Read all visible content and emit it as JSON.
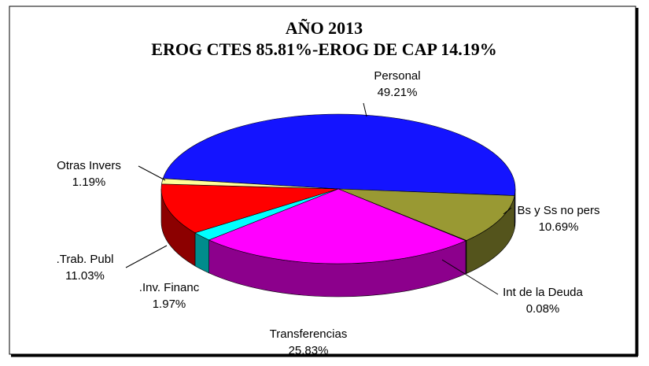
{
  "chart_data": {
    "type": "pie3d",
    "title": "AÑO 2013",
    "subtitle": "EROG CTES 85.81%-EROG DE CAP 14.19%",
    "categories": [
      "Personal",
      "Bs y Ss no pers",
      "Int de la Deuda",
      "Transferencias",
      ".Inv. Financ",
      ".Trab. Publ",
      "Otras Invers"
    ],
    "values": [
      49.21,
      10.69,
      0.08,
      25.83,
      1.97,
      11.03,
      1.19
    ],
    "value_labels": [
      "49.21%",
      "10.69%",
      "0.08%",
      "25.83%",
      "1.97%",
      "11.03%",
      "1.19%"
    ],
    "colors": [
      "#1414ff",
      "#999933",
      "#333366",
      "#ff00ff",
      "#00ffff",
      "#ff0000",
      "#ffff99"
    ]
  }
}
